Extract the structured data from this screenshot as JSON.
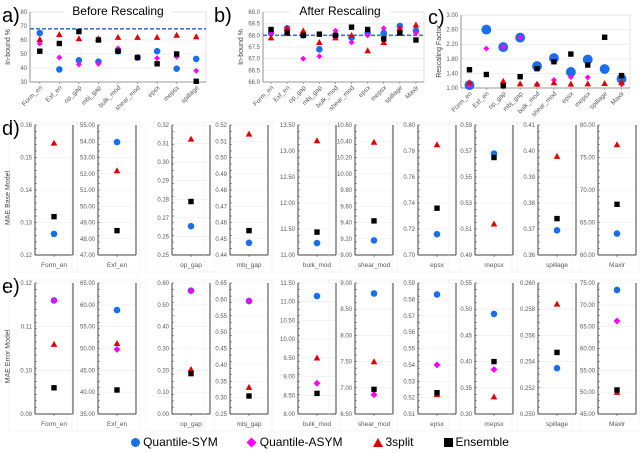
{
  "colors": {
    "Quantile-SYM": "#1a6ee8",
    "Quantile-ASYM": "#ff00ff",
    "3split": "#e00000",
    "Ensemble": "#000000",
    "target_line": "#4472c4"
  },
  "legend": {
    "items": [
      {
        "label": "Quantile-SYM",
        "marker": "circle"
      },
      {
        "label": "Quantile-ASYM",
        "marker": "diamond"
      },
      {
        "label": "3split",
        "marker": "triangle"
      },
      {
        "label": "Ensemble",
        "marker": "square"
      }
    ]
  },
  "chart_data": [
    {
      "id": "a",
      "panel_label": "a)",
      "type": "scatter",
      "title": "Before Rescaling",
      "ylabel": "In-bound %",
      "ylim": [
        30,
        80
      ],
      "yticks": [
        30,
        40,
        50,
        60,
        70,
        80
      ],
      "target_line": 68,
      "categories": [
        "Form_en",
        "Exf_en",
        "op_gap",
        "mbj_gap",
        "bulk_mod",
        "shear_mod",
        "epsx",
        "mepsx",
        "spillage"
      ],
      "series": [
        {
          "name": "Quantile-SYM",
          "values": [
            65,
            39,
            45.5,
            44.5,
            52,
            47.5,
            52,
            39.5,
            46.5
          ]
        },
        {
          "name": "Quantile-ASYM",
          "values": [
            57.5,
            47.5,
            42.5,
            43,
            54,
            47,
            47,
            48,
            38
          ]
        },
        {
          "name": "3split",
          "values": [
            60.5,
            64,
            61,
            61,
            62,
            62,
            62,
            63.5,
            62.5
          ]
        },
        {
          "name": "Ensemble",
          "values": [
            52,
            57.5,
            66,
            60,
            52,
            47.5,
            43,
            50,
            30.5
          ]
        }
      ]
    },
    {
      "id": "b",
      "panel_label": "b)",
      "type": "scatter",
      "title": "After Rescaling",
      "ylabel": "In-bound %",
      "ylim": [
        66,
        69
      ],
      "yticks": [
        66.0,
        66.5,
        67.0,
        67.5,
        68.0,
        68.5,
        69.0
      ],
      "target_line": 68,
      "categories": [
        "Form_en",
        "Exf_en",
        "op_gap",
        "mbj_gap",
        "bulk_mod",
        "shear_mod",
        "epsx",
        "mepsx",
        "spillage",
        "Maxlr"
      ],
      "series": [
        {
          "name": "Quantile-SYM",
          "values": [
            68.1,
            68.3,
            68.0,
            67.4,
            68.0,
            67.9,
            68.1,
            68.1,
            68.4,
            68.2
          ]
        },
        {
          "name": "Quantile-ASYM",
          "values": [
            68.1,
            68.3,
            67.0,
            67.1,
            68.2,
            67.7,
            68.0,
            68.3,
            68.3,
            68.1
          ]
        },
        {
          "name": "3split",
          "values": [
            67.9,
            68.3,
            68.2,
            67.7,
            67.9,
            68.0,
            67.35,
            67.7,
            68.3,
            68.45
          ]
        },
        {
          "name": "Ensemble",
          "values": [
            68.25,
            68.1,
            68.0,
            68.05,
            68.0,
            68.35,
            68.25,
            67.85,
            68.1,
            67.8
          ]
        }
      ]
    },
    {
      "id": "c",
      "panel_label": "c)",
      "type": "scatter",
      "title": "",
      "ylabel": "Rescaling Factor",
      "ylim": [
        1.0,
        3.0
      ],
      "yticks": [
        1.0,
        1.4,
        1.8,
        2.2,
        2.6,
        3.0
      ],
      "categories": [
        "Form_en",
        "Exf_en",
        "op_gap",
        "mbj_gap",
        "bulk_mod",
        "shear_mod",
        "epsx",
        "mepsx",
        "spillage",
        "Maxlr"
      ],
      "series": [
        {
          "name": "Quantile-SYM",
          "values": [
            1.08,
            2.6,
            2.12,
            2.38,
            1.6,
            1.82,
            1.44,
            1.78,
            1.52,
            1.25
          ]
        },
        {
          "name": "Quantile-ASYM",
          "values": [
            1.08,
            2.08,
            2.12,
            2.38,
            1.1,
            1.22,
            1.3,
            1.29,
            null,
            1.1
          ]
        },
        {
          "name": "3split",
          "values": [
            1.15,
            null,
            1.19,
            1.12,
            1.11,
            1.15,
            1.11,
            1.12,
            1.13,
            1.16
          ]
        },
        {
          "name": "Ensemble",
          "values": [
            1.5,
            1.37,
            1.06,
            1.31,
            1.53,
            1.72,
            1.93,
            1.63,
            2.39,
            1.34
          ]
        }
      ]
    },
    {
      "id": "d",
      "panel_label": "d)",
      "type": "scatter",
      "ylabel": "MAE Base Model",
      "subplots": [
        {
          "category": "Form_en",
          "ylim": [
            0.12,
            0.16
          ],
          "yticks": [
            "0.12",
            "0.13",
            "0.14",
            "0.15",
            "0.16"
          ],
          "values": {
            "Quantile-SYM": 0.1265,
            "3split": 0.1545,
            "Ensemble": 0.1318
          }
        },
        {
          "category": "Exf_en",
          "ylim": [
            47,
            55
          ],
          "yticks": [
            "47.00",
            "48.00",
            "49.00",
            "50.00",
            "51.00",
            "52.00",
            "53.00",
            "54.00",
            "55.00"
          ],
          "values": {
            "Quantile-SYM": 53.95,
            "3split": 52.2,
            "Ensemble": 48.5
          }
        },
        {
          "category": "op_gap",
          "ylim": [
            0.25,
            0.32
          ],
          "yticks": [
            "0.25",
            "0.26",
            "0.27",
            "0.28",
            "0.29",
            "0.30",
            "0.31",
            "0.32"
          ],
          "values": {
            "Quantile-SYM": 0.2655,
            "3split": 0.3125,
            "Ensemble": 0.2788
          }
        },
        {
          "category": "mbj_gap",
          "ylim": [
            0.44,
            0.52
          ],
          "yticks": [
            "0.44",
            "0.45",
            "0.46",
            "0.47",
            "0.48",
            "0.49",
            "0.50",
            "0.51",
            "0.52"
          ],
          "values": {
            "Quantile-SYM": 0.4475,
            "3split": 0.5145,
            "Ensemble": 0.455
          }
        },
        {
          "category": "bulk_mod",
          "ylim": [
            11.0,
            13.5
          ],
          "yticks": [
            "11.00",
            "11.50",
            "12.00",
            "12.50",
            "13.00",
            "13.50"
          ],
          "values": {
            "Quantile-SYM": 11.23,
            "3split": 13.2,
            "Ensemble": 11.44
          }
        },
        {
          "category": "shear_mod",
          "ylim": [
            9.0,
            10.6
          ],
          "yticks": [
            "9.00",
            "9.20",
            "9.40",
            "9.60",
            "9.80",
            "10.00",
            "10.20",
            "10.40",
            "10.60"
          ],
          "values": {
            "Quantile-SYM": 9.18,
            "3split": 10.39,
            "Ensemble": 9.42
          }
        },
        {
          "category": "epsx",
          "ylim": [
            0.7,
            0.8
          ],
          "yticks": [
            "0.70",
            "0.72",
            "0.74",
            "0.76",
            "0.78",
            "0.80"
          ],
          "values": {
            "Quantile-SYM": 0.716,
            "3split": 0.785,
            "Ensemble": 0.736
          }
        },
        {
          "category": "mepsx",
          "ylim": [
            0.49,
            0.59
          ],
          "yticks": [
            "0.49",
            "0.51",
            "0.53",
            "0.55",
            "0.57",
            "0.59"
          ],
          "values": {
            "Quantile-SYM": 0.568,
            "3split": 0.514,
            "Ensemble": 0.565
          }
        },
        {
          "category": "spillage",
          "ylim": [
            0.36,
            0.41
          ],
          "yticks": [
            "0.36",
            "0.37",
            "0.38",
            "0.39",
            "0.40",
            "0.41"
          ],
          "values": {
            "Quantile-SYM": 0.3695,
            "3split": 0.398,
            "Ensemble": 0.374
          }
        },
        {
          "category": "Maxlr",
          "ylim": [
            60,
            80
          ],
          "yticks": [
            "60.00",
            "65.00",
            "70.00",
            "75.00",
            "80.00"
          ],
          "values": {
            "Quantile-SYM": 63.3,
            "3split": 77.0,
            "Ensemble": 67.8
          }
        }
      ]
    },
    {
      "id": "e",
      "panel_label": "e)",
      "type": "scatter",
      "ylabel": "MAE Error Model",
      "subplots": [
        {
          "category": "Form_en",
          "ylim": [
            0.09,
            0.12
          ],
          "yticks": [
            "0.09",
            "0.10",
            "0.11",
            "0.12"
          ],
          "values": {
            "Quantile-SYM": 0.116,
            "Quantile-ASYM": 0.116,
            "3split": 0.106,
            "Ensemble": 0.096
          }
        },
        {
          "category": "Exf_en",
          "ylim": [
            35,
            65
          ],
          "yticks": [
            "35.00",
            "40.00",
            "45.00",
            "50.00",
            "55.00",
            "60.00",
            "65.00"
          ],
          "values": {
            "Quantile-SYM": 58.8,
            "Quantile-ASYM": 49.8,
            "3split": 51.2,
            "Ensemble": 40.5
          }
        },
        {
          "category": "op_gap",
          "ylim": [
            0,
            0.6
          ],
          "yticks": [
            "0.00",
            "0.10",
            "0.20",
            "0.30",
            "0.40",
            "0.50",
            "0.60"
          ],
          "values": {
            "Quantile-SYM": 0.565,
            "Quantile-ASYM": 0.565,
            "3split": 0.205,
            "Ensemble": 0.185
          }
        },
        {
          "category": "mbj_gap",
          "ylim": [
            0.25,
            0.65
          ],
          "yticks": [
            "0.25",
            "0.30",
            "0.35",
            "0.40",
            "0.45",
            "0.50",
            "0.55",
            "0.60",
            "0.65"
          ],
          "values": {
            "Quantile-SYM": 0.595,
            "Quantile-ASYM": 0.595,
            "3split": 0.332,
            "Ensemble": 0.305
          }
        },
        {
          "category": "bulk_mod",
          "ylim": [
            8.0,
            11.5
          ],
          "yticks": [
            "8.00",
            "8.50",
            "9.00",
            "9.50",
            "10.00",
            "10.50",
            "11.00",
            "11.50"
          ],
          "values": {
            "Quantile-SYM": 11.15,
            "Quantile-ASYM": 8.82,
            "3split": 9.5,
            "Ensemble": 8.55
          }
        },
        {
          "category": "shear_mod",
          "ylim": [
            6.5,
            9.0
          ],
          "yticks": [
            "6.50",
            "7.00",
            "7.50",
            "8.00",
            "8.50",
            "9.00"
          ],
          "values": {
            "Quantile-SYM": 8.8,
            "Quantile-ASYM": 6.87,
            "3split": 7.5,
            "Ensemble": 6.97
          }
        },
        {
          "category": "epsx",
          "ylim": [
            0.51,
            0.59
          ],
          "yticks": [
            "0.51",
            "0.52",
            "0.53",
            "0.54",
            "0.55",
            "0.56",
            "0.57",
            "0.58",
            "0.59"
          ],
          "values": {
            "Quantile-SYM": 0.583,
            "Quantile-ASYM": 0.54,
            "3split": 0.522,
            "Ensemble": 0.523
          }
        },
        {
          "category": "mepsx",
          "ylim": [
            0.3,
            0.55
          ],
          "yticks": [
            "0.30",
            "0.35",
            "0.40",
            "0.45",
            "0.50",
            "0.55"
          ],
          "values": {
            "Quantile-SYM": 0.491,
            "Quantile-ASYM": 0.385,
            "3split": 0.333,
            "Ensemble": 0.4
          }
        },
        {
          "category": "spillage",
          "ylim": [
            0.25,
            0.26
          ],
          "yticks": [
            "0.250",
            "0.252",
            "0.254",
            "0.256",
            "0.258",
            "0.260"
          ],
          "values": {
            "Quantile-SYM": 0.2535,
            "3split": 0.2584,
            "Ensemble": 0.2547
          }
        },
        {
          "category": "Maxlr",
          "ylim": [
            45,
            75
          ],
          "yticks": [
            "45.00",
            "50.00",
            "55.00",
            "60.00",
            "65.00",
            "70.00",
            "75.00"
          ],
          "values": {
            "Quantile-SYM": 73.4,
            "Quantile-ASYM": 66.3,
            "3split": 50.0,
            "Ensemble": 50.5
          }
        }
      ]
    }
  ]
}
